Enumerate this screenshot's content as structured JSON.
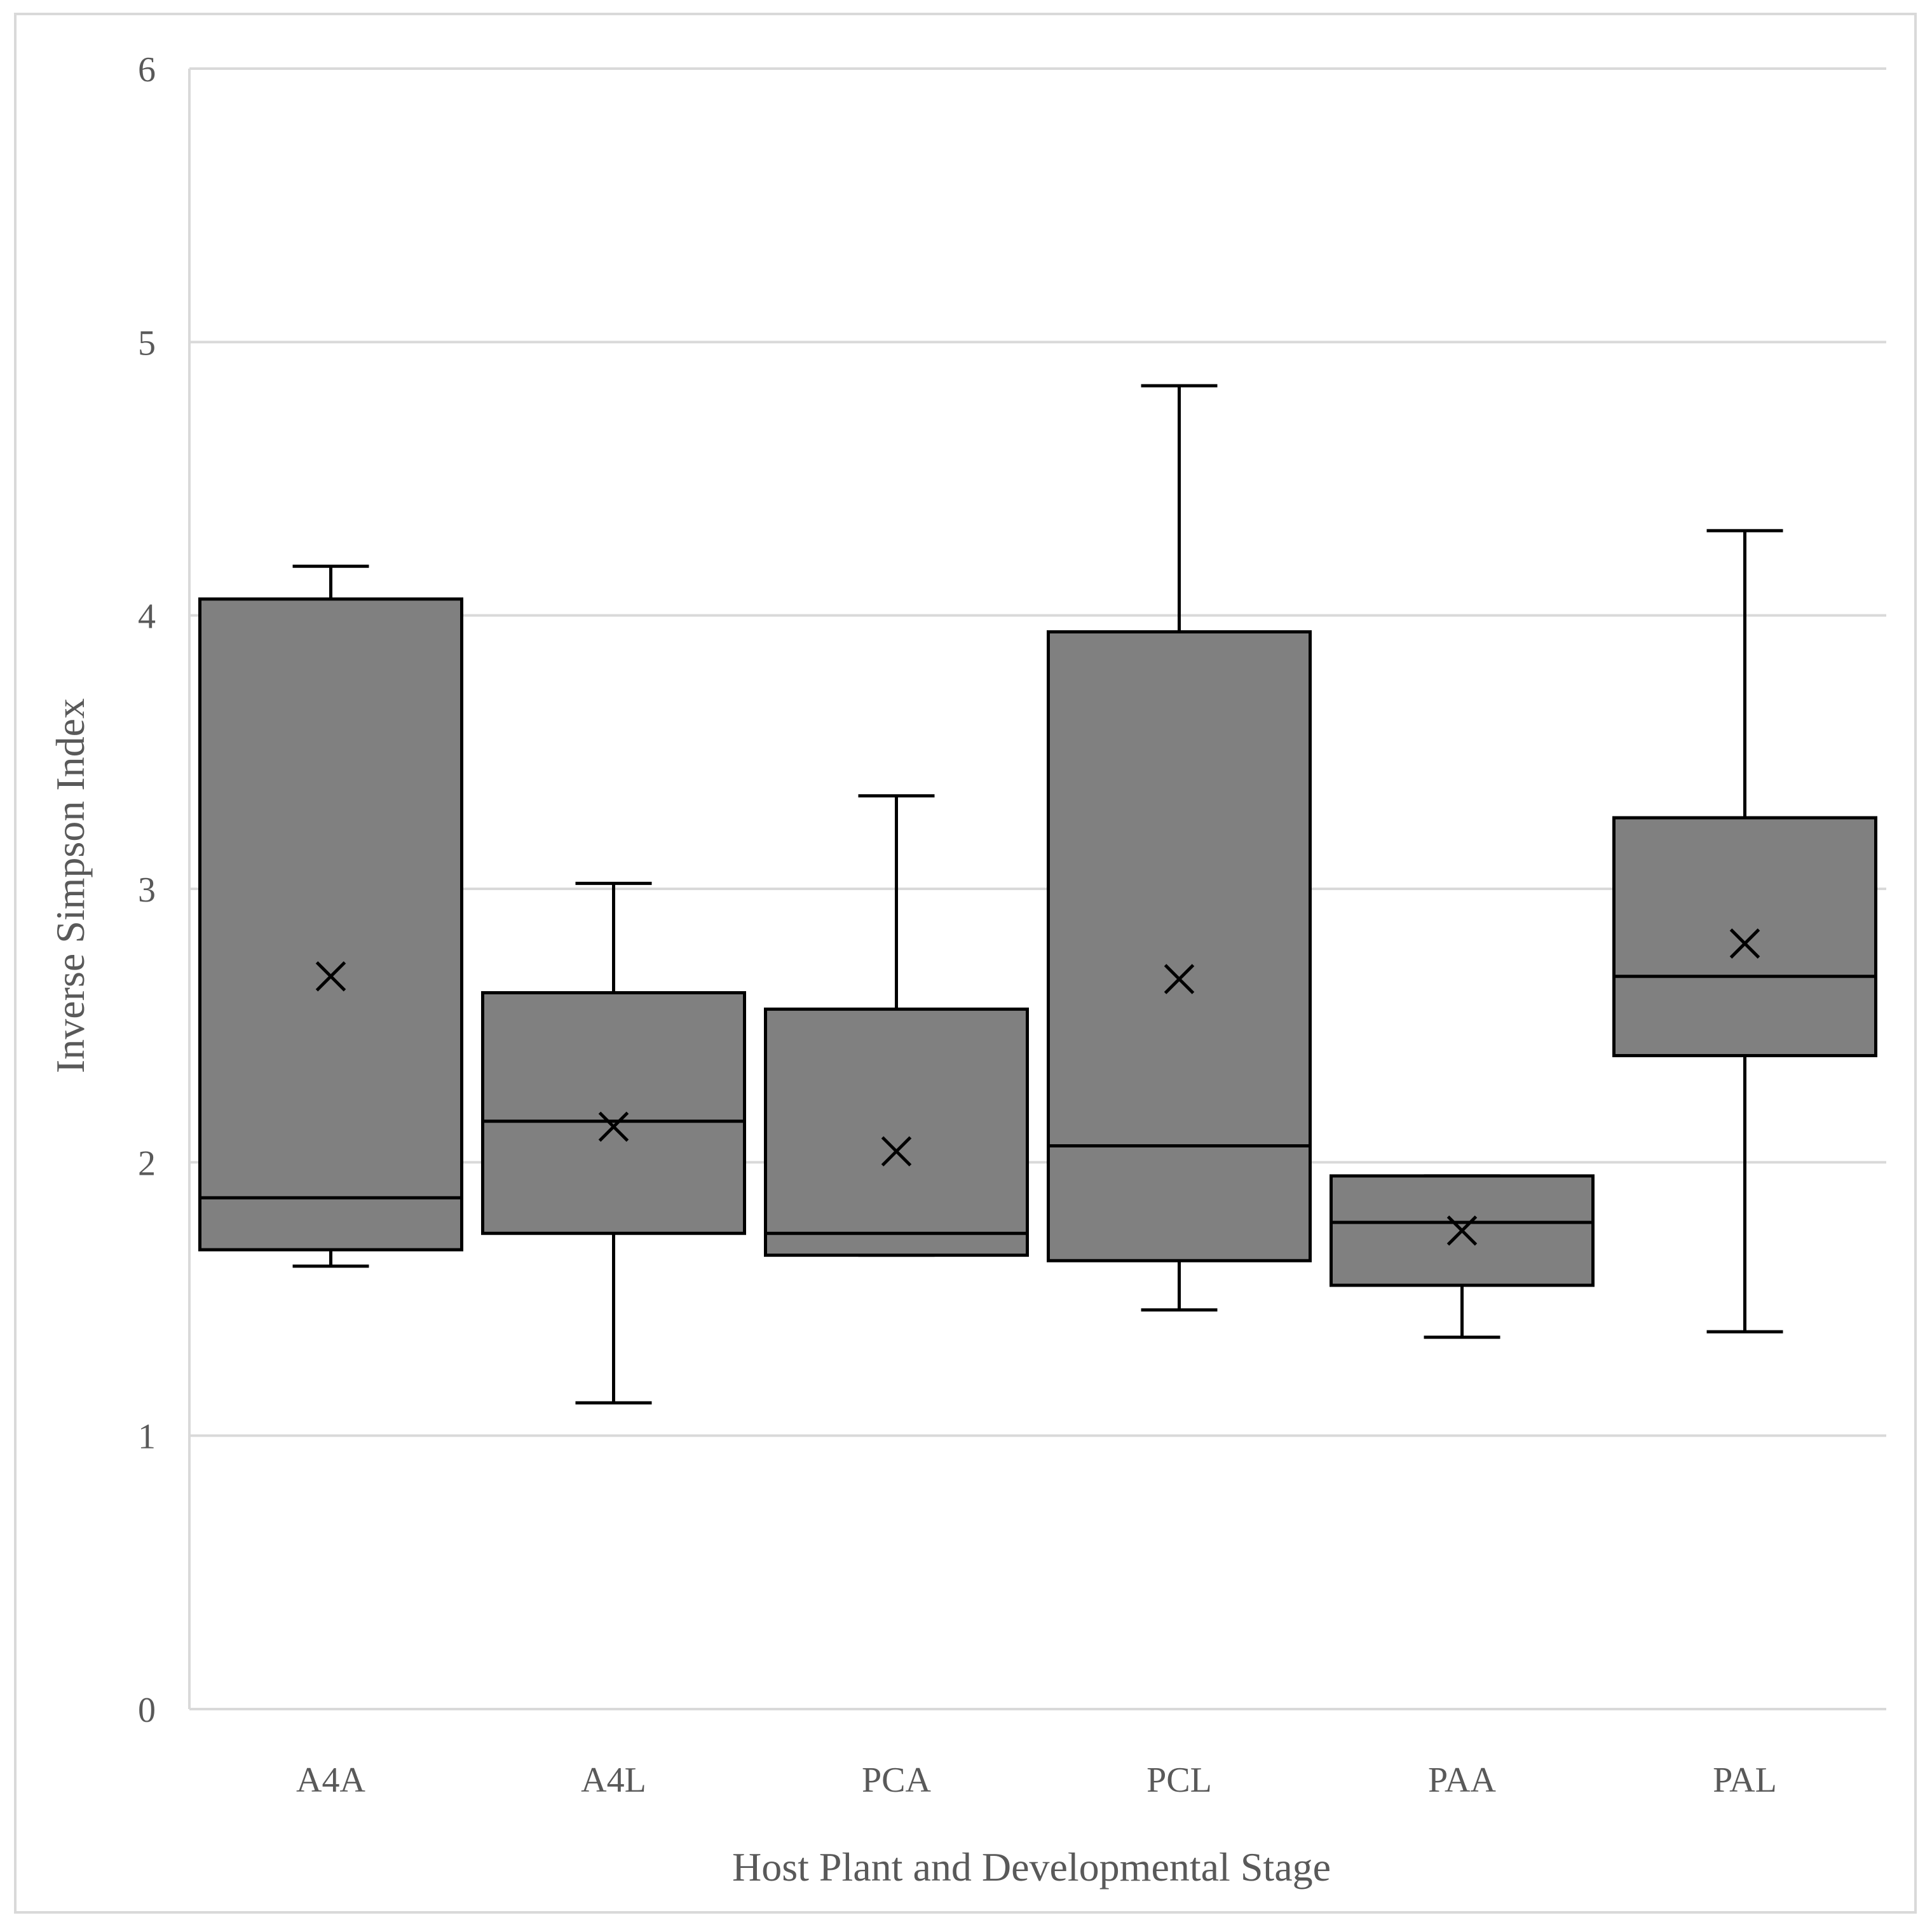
{
  "chart_data": {
    "type": "box",
    "title": "",
    "xlabel": "Host Plant and Developmental Stage",
    "ylabel": "Inverse Simpson Index",
    "ylim": [
      0,
      6
    ],
    "yticks": [
      "0",
      "1",
      "2",
      "3",
      "4",
      "5",
      "6"
    ],
    "grid": true,
    "legend": "none",
    "categories": [
      "A4A",
      "A4L",
      "PCA",
      "PCL",
      "PAA",
      "PAL"
    ],
    "series": [
      {
        "name": "A4A",
        "min": 1.62,
        "q1": 1.68,
        "median": 1.87,
        "q3": 4.06,
        "max": 4.18,
        "mean": 2.68
      },
      {
        "name": "A4L",
        "min": 1.12,
        "q1": 1.74,
        "median": 2.15,
        "q3": 2.62,
        "max": 3.02,
        "mean": 2.13
      },
      {
        "name": "PCA",
        "min": 1.66,
        "q1": 1.66,
        "median": 1.74,
        "q3": 2.56,
        "max": 3.34,
        "mean": 2.04
      },
      {
        "name": "PCL",
        "min": 1.46,
        "q1": 1.64,
        "median": 2.06,
        "q3": 3.94,
        "max": 4.84,
        "mean": 2.67
      },
      {
        "name": "PAA",
        "min": 1.36,
        "q1": 1.55,
        "median": 1.78,
        "q3": 1.95,
        "max": 1.95,
        "mean": 1.75
      },
      {
        "name": "PAL",
        "min": 1.38,
        "q1": 2.39,
        "median": 2.68,
        "q3": 3.26,
        "max": 4.31,
        "mean": 2.8
      }
    ],
    "colors": {
      "box_fill": "#808080",
      "box_stroke": "#000000",
      "grid": "#d9d9d9",
      "text": "#595959"
    }
  }
}
